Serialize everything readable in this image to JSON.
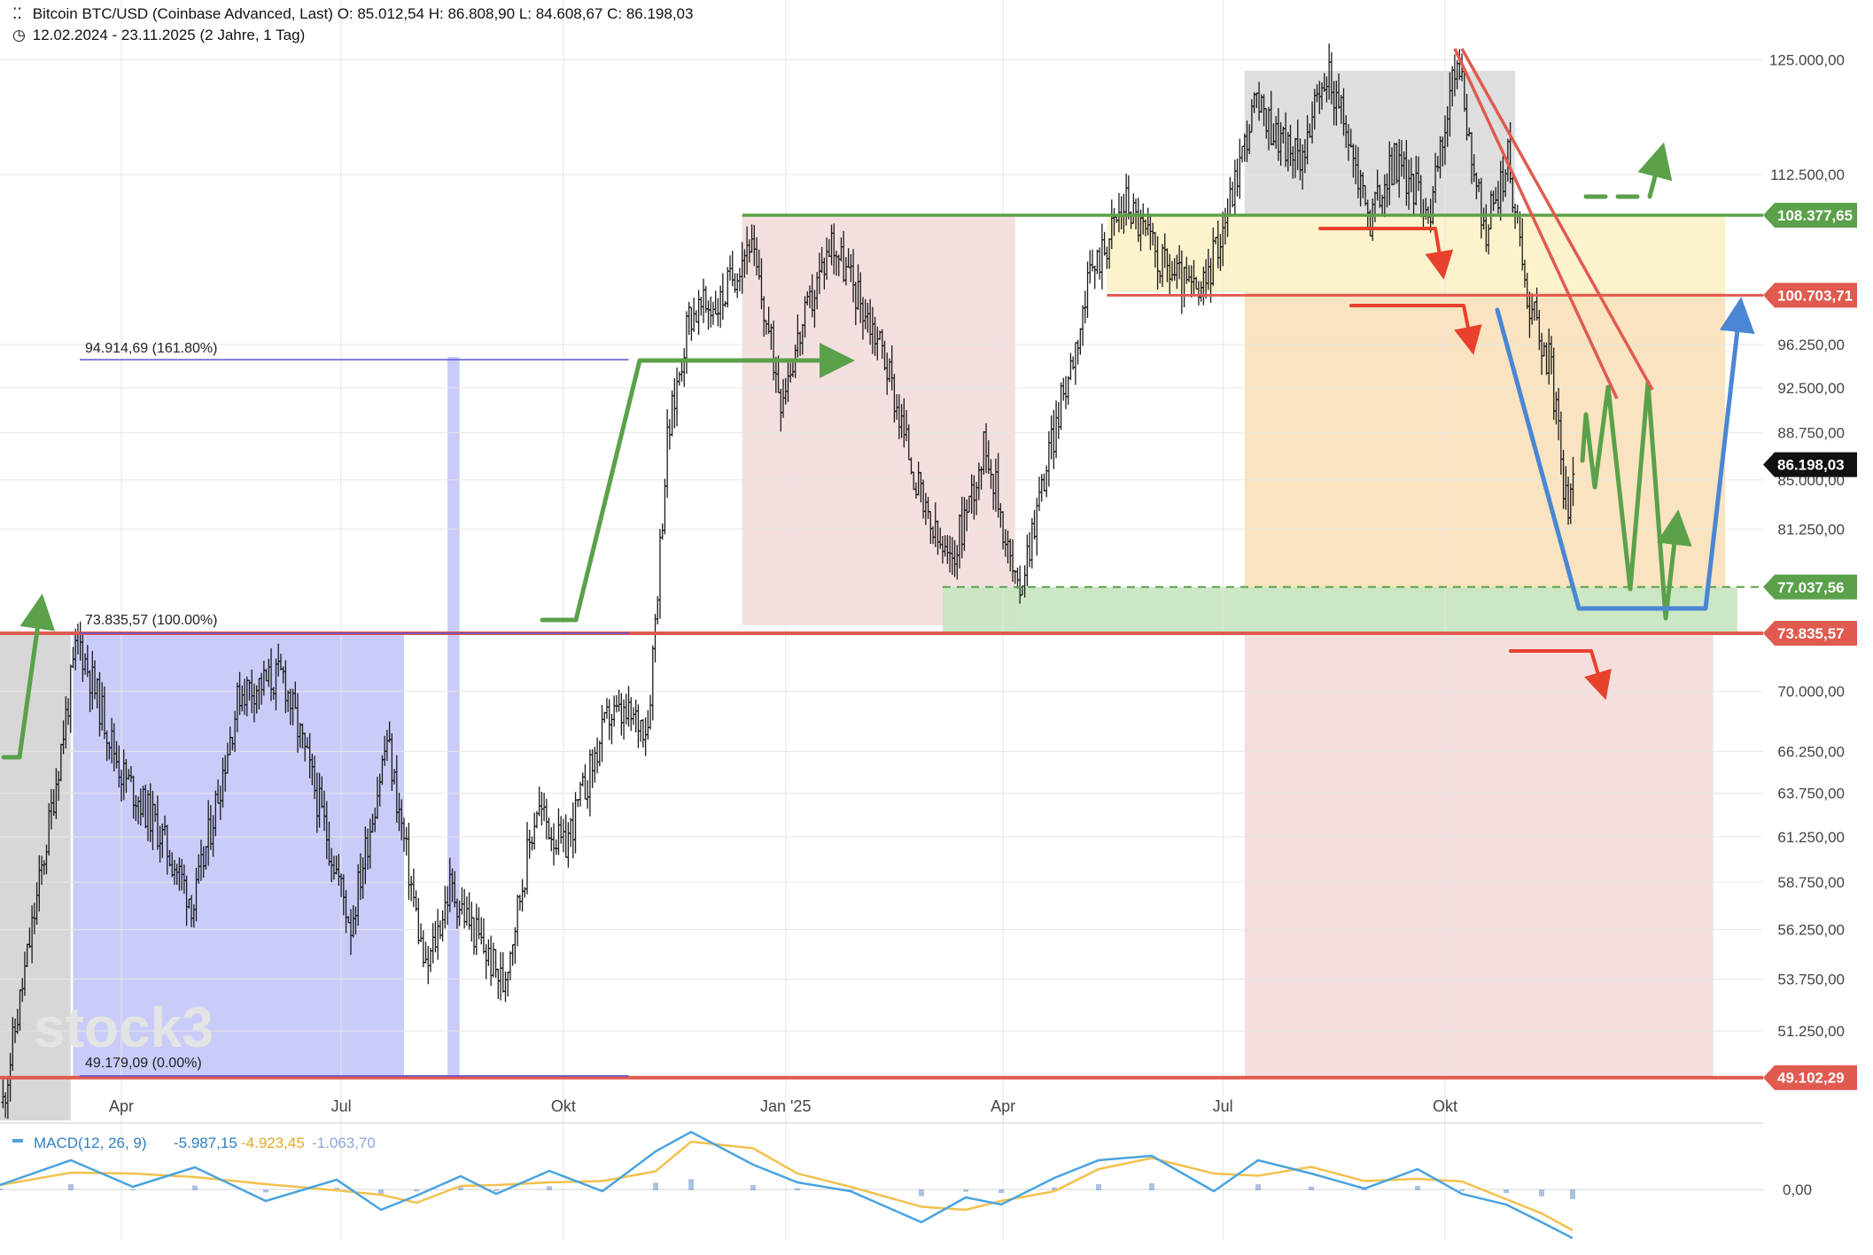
{
  "header": {
    "instrument_title": "Bitcoin BTC/USD (Coinbase Advanced, Last)",
    "open": "O: 85.012,54",
    "high": "H: 86.808,90",
    "low": "L: 84.608,67",
    "close": "C: 86.198,03",
    "period": "12.02.2024 - 23.11.2025",
    "interval": "(2 Jahre, 1 Tag)"
  },
  "watermark": "stock3",
  "macd": {
    "label": "MACD(12, 26, 9)",
    "macd_value": "-5.987,15",
    "signal_value": "-4.923,45",
    "hist_value": "-1.063,70",
    "zero_label": "0,00"
  },
  "price_ticks": [
    "125.000,00",
    "112.500,00",
    "96.250,00",
    "92.500,00",
    "88.750,00",
    "85.000,00",
    "81.250,00",
    "70.000,00",
    "66.250,00",
    "63.750,00",
    "61.250,00",
    "58.750,00",
    "56.250,00",
    "53.750,00",
    "51.250,00"
  ],
  "level_badges": [
    {
      "label": "108.377,65",
      "color": "#5aa14a"
    },
    {
      "label": "100.703,71",
      "color": "#e05a4f"
    },
    {
      "label": "86.198,03",
      "color": "#111111"
    },
    {
      "label": "77.037,56",
      "color": "#5aa14a"
    },
    {
      "label": "73.835,57",
      "color": "#e05a4f"
    },
    {
      "label": "49.102,29",
      "color": "#e05a4f"
    }
  ],
  "fib_labels": {
    "f161": "94.914,69 (161.80%)",
    "f100": "73.835,57 (100.00%)",
    "f0": "49.179,09 (0.00%)"
  },
  "x_ticks": [
    "Apr",
    "Jul",
    "Okt",
    "Jan '25",
    "Apr",
    "Jul",
    "Okt"
  ],
  "colors": {
    "green": "#5aa14a",
    "red": "#e05a4f",
    "blue": "#4a86d4",
    "arrow_red": "#e8412c",
    "macd_line": "#4aa3df",
    "signal_line": "#f2c14e",
    "candle": "#1a1a1a"
  },
  "chart_data": {
    "type": "line",
    "title": "Bitcoin BTC/USD (Coinbase Advanced, Last)",
    "x_range": [
      "2024-02-12",
      "2025-11-23"
    ],
    "y_scale": "log",
    "ylim": [
      48000,
      126500
    ],
    "price_series": {
      "name": "Bitcoin BTC/USD",
      "x": [
        "2024-02-12",
        "2024-03-01",
        "2024-03-14",
        "2024-04-01",
        "2024-04-15",
        "2024-05-01",
        "2024-05-20",
        "2024-06-07",
        "2024-06-20",
        "2024-07-05",
        "2024-07-20",
        "2024-08-05",
        "2024-08-15",
        "2024-09-06",
        "2024-09-20",
        "2024-10-01",
        "2024-10-20",
        "2024-11-05",
        "2024-11-13",
        "2024-11-22",
        "2024-12-05",
        "2024-12-17",
        "2024-12-30",
        "2025-01-20",
        "2025-02-10",
        "2025-02-28",
        "2025-03-10",
        "2025-03-25",
        "2025-04-07",
        "2025-04-20",
        "2025-05-08",
        "2025-05-22",
        "2025-06-05",
        "2025-06-22",
        "2025-07-03",
        "2025-07-14",
        "2025-08-01",
        "2025-08-14",
        "2025-08-31",
        "2025-09-10",
        "2025-09-25",
        "2025-10-06",
        "2025-10-17",
        "2025-10-27",
        "2025-11-04",
        "2025-11-14",
        "2025-11-21",
        "2025-11-23"
      ],
      "y": [
        48000,
        61000,
        73500,
        65000,
        62000,
        57500,
        70000,
        71000,
        64000,
        56500,
        67000,
        54000,
        58500,
        53500,
        63000,
        60500,
        68500,
        68000,
        88000,
        99000,
        100000,
        106000,
        92000,
        106000,
        96000,
        82000,
        78500,
        88000,
        76500,
        87000,
        103000,
        110000,
        104000,
        100500,
        109000,
        120000,
        114000,
        123500,
        108000,
        114000,
        109000,
        125500,
        106500,
        114000,
        101000,
        94000,
        81500,
        86198
      ]
    },
    "levels": [
      {
        "label": "108.377,65",
        "value": 108377.65
      },
      {
        "label": "100.703,71",
        "value": 100703.71
      },
      {
        "label": "77.037,56",
        "value": 77037.56
      },
      {
        "label": "73.835,57",
        "value": 73835.57
      },
      {
        "label": "49.102,29",
        "value": 49102.29
      }
    ],
    "fibonacci": [
      {
        "label": "94.914,69 (161.80%)",
        "value": 94914.69
      },
      {
        "label": "73.835,57 (100.00%)",
        "value": 73835.57
      },
      {
        "label": "49.179,09 (0.00%)",
        "value": 49179.09
      }
    ],
    "macd": {
      "name": "MACD(12, 26, 9)",
      "macd_last": -5987.15,
      "signal_last": -4923.45,
      "histogram_last": -1063.7
    }
  }
}
